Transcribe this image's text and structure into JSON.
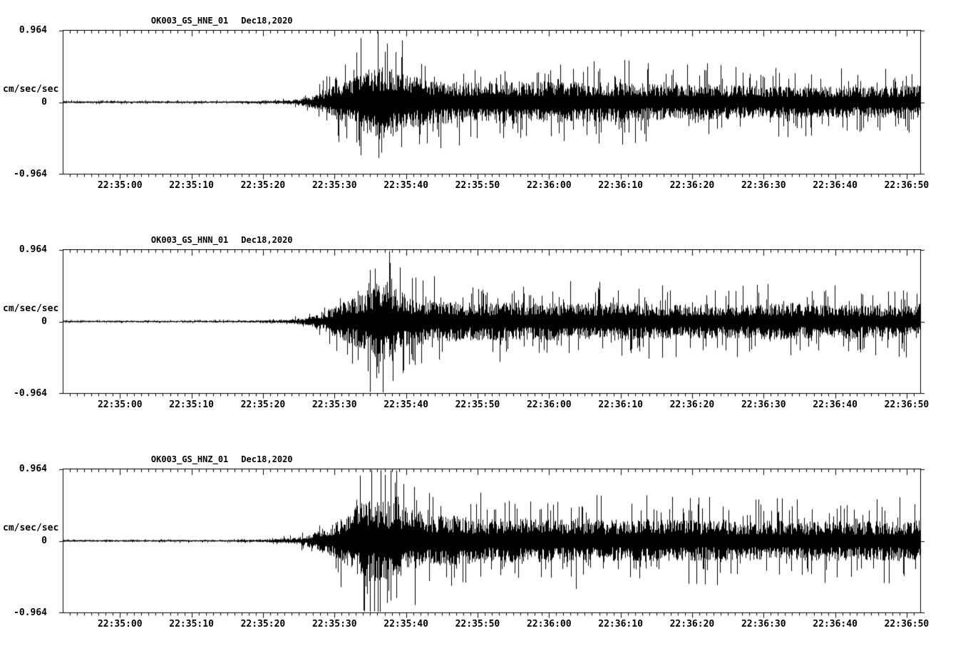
{
  "chart_data": {
    "type": "line",
    "subtype": "seismogram-3-component-strong-motion",
    "station": "OK003",
    "network": "GS",
    "date_label": "Dec18,2020",
    "ylabel": "cm/sec/sec",
    "ylim": [
      -0.964,
      0.964
    ],
    "y_tick_labels": [
      "0.964",
      "0",
      "-0.964"
    ],
    "y_tick_values": [
      0.964,
      0,
      -0.964
    ],
    "x_unit": "seconds relative to 22:35:00",
    "x_range_seconds": [
      -8,
      112
    ],
    "x_minor_tick_interval_s": 1,
    "x_major_tick_interval_s": 10,
    "x_ticks": [
      {
        "t": 0,
        "label": "22:35:00"
      },
      {
        "t": 10,
        "label": "22:35:10"
      },
      {
        "t": 20,
        "label": "22:35:20"
      },
      {
        "t": 30,
        "label": "22:35:30"
      },
      {
        "t": 40,
        "label": "22:35:40"
      },
      {
        "t": 50,
        "label": "22:35:50"
      },
      {
        "t": 60,
        "label": "22:36:00"
      },
      {
        "t": 70,
        "label": "22:36:10"
      },
      {
        "t": 80,
        "label": "22:36:20"
      },
      {
        "t": 90,
        "label": "22:36:30"
      },
      {
        "t": 100,
        "label": "22:36:40"
      },
      {
        "t": 110,
        "label": "22:36:50"
      }
    ],
    "series": [
      {
        "name": "OK003_GS_HNE_01",
        "date": "Dec18,2020",
        "peak_amplitude": 0.85,
        "envelope": [
          [
            -8,
            0.022
          ],
          [
            15,
            0.022
          ],
          [
            20,
            0.03
          ],
          [
            24,
            0.05
          ],
          [
            26,
            0.1
          ],
          [
            28,
            0.2
          ],
          [
            30,
            0.38
          ],
          [
            32,
            0.55
          ],
          [
            34,
            0.72
          ],
          [
            36,
            0.85
          ],
          [
            38,
            0.78
          ],
          [
            40,
            0.62
          ],
          [
            43,
            0.52
          ],
          [
            46,
            0.48
          ],
          [
            50,
            0.44
          ],
          [
            54,
            0.5
          ],
          [
            58,
            0.46
          ],
          [
            62,
            0.48
          ],
          [
            66,
            0.44
          ],
          [
            70,
            0.46
          ],
          [
            74,
            0.42
          ],
          [
            78,
            0.4
          ],
          [
            82,
            0.42
          ],
          [
            86,
            0.38
          ],
          [
            90,
            0.36
          ],
          [
            94,
            0.38
          ],
          [
            98,
            0.35
          ],
          [
            102,
            0.37
          ],
          [
            106,
            0.35
          ],
          [
            112,
            0.4
          ]
        ]
      },
      {
        "name": "OK003_GS_HNN_01",
        "date": "Dec18,2020",
        "peak_amplitude": 0.95,
        "envelope": [
          [
            -8,
            0.02
          ],
          [
            15,
            0.02
          ],
          [
            20,
            0.028
          ],
          [
            24,
            0.045
          ],
          [
            26,
            0.09
          ],
          [
            28,
            0.18
          ],
          [
            30,
            0.35
          ],
          [
            32,
            0.5
          ],
          [
            34,
            0.65
          ],
          [
            36,
            0.92
          ],
          [
            37,
            0.95
          ],
          [
            38,
            0.8
          ],
          [
            40,
            0.6
          ],
          [
            43,
            0.5
          ],
          [
            46,
            0.46
          ],
          [
            50,
            0.42
          ],
          [
            54,
            0.44
          ],
          [
            58,
            0.42
          ],
          [
            62,
            0.44
          ],
          [
            66,
            0.42
          ],
          [
            70,
            0.44
          ],
          [
            74,
            0.4
          ],
          [
            78,
            0.38
          ],
          [
            82,
            0.4
          ],
          [
            86,
            0.38
          ],
          [
            90,
            0.4
          ],
          [
            94,
            0.42
          ],
          [
            98,
            0.38
          ],
          [
            102,
            0.4
          ],
          [
            106,
            0.36
          ],
          [
            112,
            0.4
          ]
        ]
      },
      {
        "name": "OK003_GS_HNZ_01",
        "date": "Dec18,2020",
        "peak_amplitude": 0.95,
        "envelope": [
          [
            -8,
            0.022
          ],
          [
            15,
            0.022
          ],
          [
            20,
            0.03
          ],
          [
            24,
            0.06
          ],
          [
            26,
            0.12
          ],
          [
            28,
            0.25
          ],
          [
            30,
            0.42
          ],
          [
            32,
            0.6
          ],
          [
            33,
            0.8
          ],
          [
            35,
            0.93
          ],
          [
            37,
            0.9
          ],
          [
            39,
            0.85
          ],
          [
            41,
            0.7
          ],
          [
            44,
            0.6
          ],
          [
            48,
            0.55
          ],
          [
            52,
            0.5
          ],
          [
            56,
            0.52
          ],
          [
            60,
            0.5
          ],
          [
            64,
            0.52
          ],
          [
            68,
            0.48
          ],
          [
            72,
            0.5
          ],
          [
            76,
            0.48
          ],
          [
            80,
            0.46
          ],
          [
            84,
            0.48
          ],
          [
            88,
            0.44
          ],
          [
            92,
            0.46
          ],
          [
            96,
            0.44
          ],
          [
            100,
            0.46
          ],
          [
            104,
            0.44
          ],
          [
            108,
            0.46
          ],
          [
            112,
            0.5
          ]
        ]
      }
    ],
    "colors": {
      "trace": "#000000",
      "background": "#ffffff"
    }
  }
}
